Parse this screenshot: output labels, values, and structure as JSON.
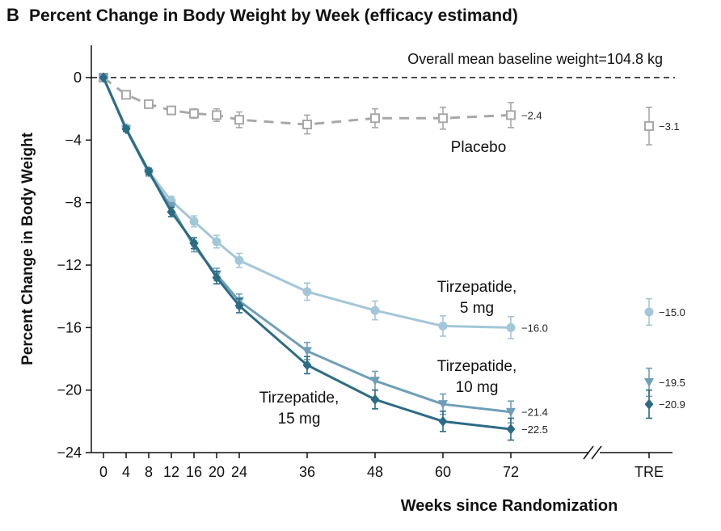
{
  "panel_label": "B",
  "title": "Percent Change in Body Weight by Week (efficacy estimand)",
  "note": "Overall mean baseline weight=104.8 kg",
  "colors": {
    "placebo": "#a8a8a8",
    "tz5": "#a3c7d8",
    "tz10": "#6e9fb7",
    "tz15": "#2c6b85",
    "axis": "#111111"
  },
  "chart_data": {
    "type": "line",
    "title": "Percent Change in Body Weight by Week (efficacy estimand)",
    "xlabel": "Weeks since Randomization",
    "ylabel": "Percent Change in Body Weight",
    "xlim": [
      0,
      72
    ],
    "ylim": [
      -24,
      0
    ],
    "x_ticks": [
      0,
      4,
      8,
      12,
      16,
      20,
      24,
      36,
      48,
      60,
      72
    ],
    "y_ticks": [
      0,
      -4,
      -8,
      -12,
      -16,
      -20,
      -24
    ],
    "extra_category": "TRE",
    "grid": false,
    "x": [
      0,
      4,
      8,
      12,
      16,
      20,
      24,
      36,
      48,
      60,
      72
    ],
    "series": [
      {
        "name": "Placebo",
        "key": "placebo",
        "marker": "square",
        "line_style": "dashed",
        "values": [
          0,
          -1.1,
          -1.7,
          -2.1,
          -2.3,
          -2.4,
          -2.7,
          -3.0,
          -2.6,
          -2.6,
          -2.4
        ],
        "errors": [
          0,
          0.1,
          0.15,
          0.2,
          0.3,
          0.4,
          0.5,
          0.6,
          0.6,
          0.7,
          0.8
        ],
        "end_label": "−2.4",
        "tre_value": -3.1,
        "tre_error": 1.2,
        "tre_label": "−3.1"
      },
      {
        "name": "Tirzepatide, 5 mg",
        "key": "tz5",
        "marker": "circle",
        "line_style": "solid",
        "values": [
          0,
          -3.2,
          -6.0,
          -7.9,
          -9.2,
          -10.5,
          -11.7,
          -13.7,
          -14.9,
          -15.9,
          -16.0
        ],
        "errors": [
          0,
          0.15,
          0.2,
          0.3,
          0.35,
          0.4,
          0.45,
          0.55,
          0.6,
          0.65,
          0.7
        ],
        "end_label": "−16.0",
        "tre_value": -15.0,
        "tre_error": 0.85,
        "tre_label": "−15.0"
      },
      {
        "name": "Tirzepatide, 10 mg",
        "key": "tz10",
        "marker": "triangle-down",
        "line_style": "solid",
        "values": [
          0,
          -3.3,
          -6.1,
          -8.3,
          -10.8,
          -12.6,
          -14.3,
          -17.5,
          -19.4,
          -20.9,
          -21.4
        ],
        "errors": [
          0,
          0.15,
          0.2,
          0.3,
          0.35,
          0.4,
          0.45,
          0.55,
          0.6,
          0.65,
          0.7
        ],
        "end_label": "−21.4",
        "tre_value": -19.5,
        "tre_error": 0.9,
        "tre_label": "−19.5"
      },
      {
        "name": "Tirzepatide, 15 mg",
        "key": "tz15",
        "marker": "diamond",
        "line_style": "solid",
        "values": [
          0,
          -3.3,
          -6.0,
          -8.6,
          -10.6,
          -12.8,
          -14.6,
          -18.4,
          -20.6,
          -22.0,
          -22.5
        ],
        "errors": [
          0,
          0.15,
          0.2,
          0.3,
          0.35,
          0.4,
          0.45,
          0.55,
          0.6,
          0.65,
          0.7
        ],
        "end_label": "−22.5",
        "tre_value": -20.9,
        "tre_error": 0.9,
        "tre_label": "−20.9"
      }
    ],
    "annotations": [
      {
        "key": "placebo",
        "lines": [
          "Placebo"
        ]
      },
      {
        "key": "tz5",
        "lines": [
          "Tirzepatide,",
          "5 mg"
        ]
      },
      {
        "key": "tz10",
        "lines": [
          "Tirzepatide,",
          "10 mg"
        ]
      },
      {
        "key": "tz15",
        "lines": [
          "Tirzepatide,",
          "15 mg"
        ]
      }
    ]
  }
}
